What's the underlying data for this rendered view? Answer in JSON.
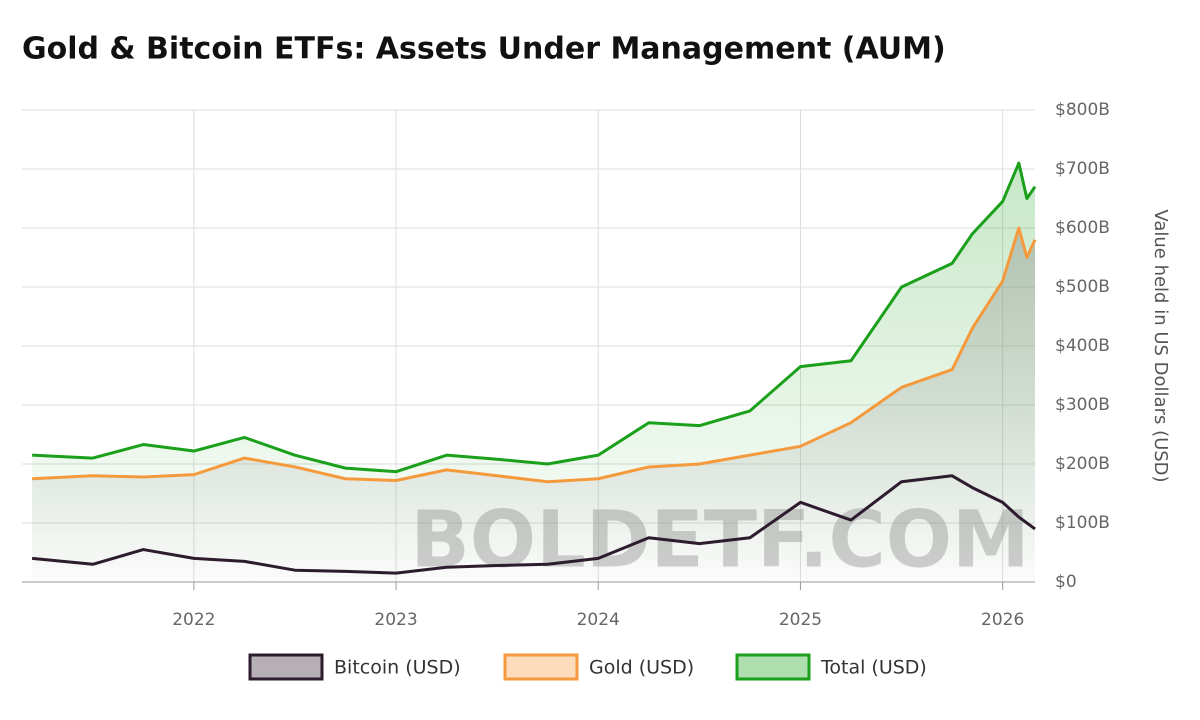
{
  "chart_data": {
    "type": "line",
    "title": "Gold & Bitcoin ETFs: Assets Under Management (AUM)",
    "y_label": "Value held in US Dollars (USD)",
    "watermark": "BOLDETF.COM",
    "x": [
      2021.2,
      2021.5,
      2021.75,
      2022.0,
      2022.25,
      2022.5,
      2022.75,
      2023.0,
      2023.25,
      2023.5,
      2023.75,
      2024.0,
      2024.25,
      2024.5,
      2024.75,
      2025.0,
      2025.25,
      2025.5,
      2025.75,
      2025.85,
      2026.0,
      2026.08,
      2026.12,
      2026.16
    ],
    "series": [
      {
        "name": "Bitcoin (USD)",
        "color": "#2d1b2e",
        "values": [
          40,
          30,
          55,
          40,
          35,
          20,
          18,
          15,
          25,
          28,
          30,
          40,
          75,
          65,
          75,
          135,
          105,
          170,
          180,
          160,
          135,
          110,
          100,
          90
        ]
      },
      {
        "name": "Gold (USD)",
        "color": "#f59a3c",
        "values": [
          175,
          180,
          178,
          182,
          210,
          195,
          175,
          172,
          190,
          180,
          170,
          175,
          195,
          200,
          215,
          230,
          270,
          330,
          360,
          430,
          510,
          600,
          550,
          580
        ]
      },
      {
        "name": "Total (USD)",
        "color": "#1aa01a",
        "values": [
          215,
          210,
          233,
          222,
          245,
          215,
          193,
          187,
          215,
          208,
          200,
          215,
          270,
          265,
          290,
          365,
          375,
          500,
          540,
          590,
          645,
          710,
          650,
          670
        ]
      }
    ],
    "xlim": [
      2021.15,
      2026.16
    ],
    "xticks": [
      2022,
      2023,
      2024,
      2025,
      2026
    ],
    "ylim": [
      0,
      800
    ],
    "yticks": [
      {
        "value": 0,
        "label": "$0"
      },
      {
        "value": 100,
        "label": "$100B"
      },
      {
        "value": 200,
        "label": "$200B"
      },
      {
        "value": 300,
        "label": "$300B"
      },
      {
        "value": 400,
        "label": "$400B"
      },
      {
        "value": 500,
        "label": "$500B"
      },
      {
        "value": 600,
        "label": "$600B"
      },
      {
        "value": 700,
        "label": "$700B"
      },
      {
        "value": 800,
        "label": "$800B"
      }
    ],
    "grid": true,
    "legend": "bottom"
  }
}
